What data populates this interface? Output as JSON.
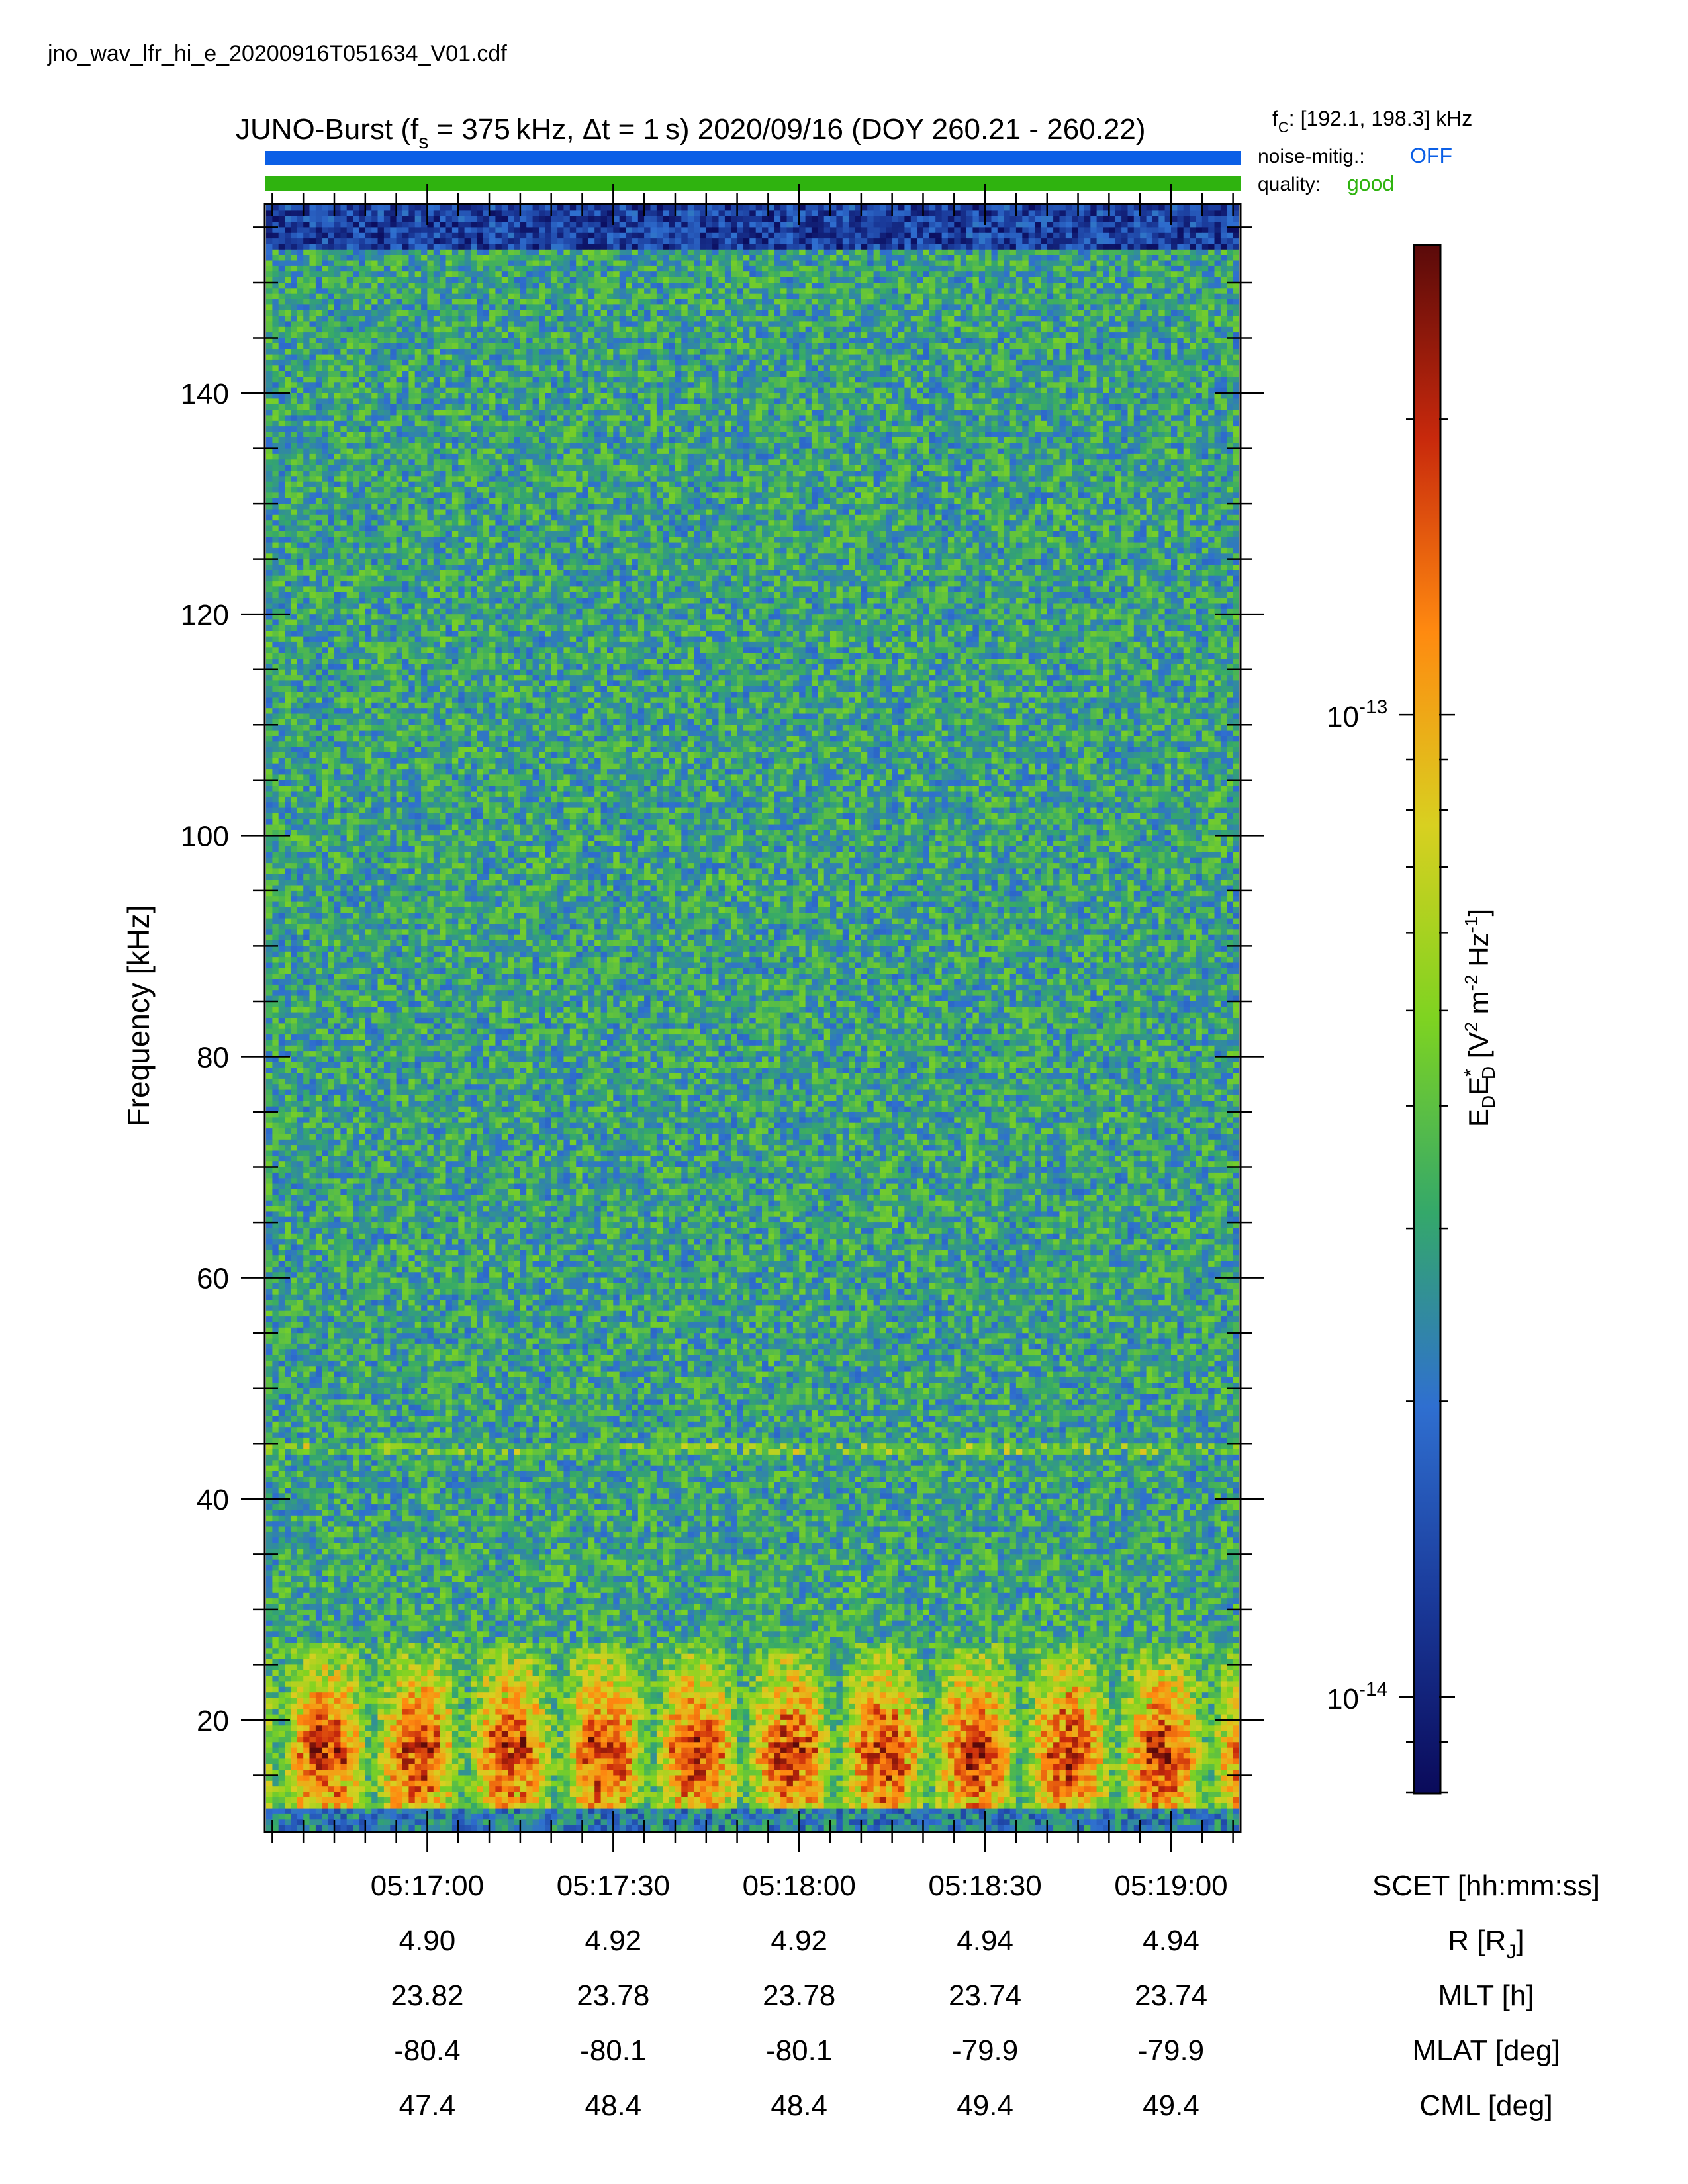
{
  "filename": "jno_wav_lfr_hi_e_20200916T051634_V01.cdf",
  "header": {
    "title_prefix": "JUNO-Burst (f",
    "title_sub": "s",
    "title_mid": " = 375 kHz, Δt = 1 s)  2020/09/16 (DOY 260.21 - 260.22)",
    "fc_label": "f",
    "fc_sub": "C",
    "fc_value": ": [192.1, 198.3] kHz"
  },
  "status": {
    "noise_label": "noise-mitig.:",
    "noise_value": "OFF",
    "noise_color": "#0b5fe6",
    "quality_label": "quality:",
    "quality_value": "good",
    "quality_color": "#2fb30f"
  },
  "chart_data": {
    "type": "heatmap",
    "ylabel": "Frequency [kHz]",
    "yticks": [
      "20",
      "40",
      "60",
      "80",
      "100",
      "120",
      "140"
    ],
    "ylim": [
      10,
      157
    ],
    "xlim_seconds_after_051634": [
      0,
      157
    ],
    "xticks": [
      "05:17:00",
      "05:17:30",
      "05:18:00",
      "05:18:30",
      "05:19:00"
    ],
    "x_axis_label": "SCET [hh:mm:ss]",
    "ephemeris": [
      {
        "label": "R [R",
        "sub": "J",
        "after": "]",
        "values": [
          "4.90",
          "4.92",
          "4.92",
          "4.94",
          "4.94"
        ]
      },
      {
        "label": "MLT [h]",
        "sub": "",
        "after": "",
        "values": [
          "23.82",
          "23.78",
          "23.78",
          "23.74",
          "23.74"
        ]
      },
      {
        "label": "MLAT [deg]",
        "sub": "",
        "after": "",
        "values": [
          "-80.4",
          "-80.1",
          "-80.1",
          "-79.9",
          "-79.9"
        ]
      },
      {
        "label": "CML [deg]",
        "sub": "",
        "after": "",
        "values": [
          "47.4",
          "48.4",
          "48.4",
          "49.4",
          "49.4"
        ]
      }
    ],
    "colorbar": {
      "scale": "log",
      "range": [
        8e-15,
        3e-13
      ],
      "ticks": [
        {
          "base": "10",
          "exp": "-13",
          "value": 1e-13
        },
        {
          "base": "10",
          "exp": "-14",
          "value": 1e-14
        }
      ],
      "colormap": [
        "#0a0a5a",
        "#1a3a9a",
        "#2f6fd0",
        "#34a86a",
        "#7ed321",
        "#d8d020",
        "#ff8a10",
        "#c8290c",
        "#5a0a0a"
      ],
      "label_parts": {
        "e1": "E",
        "s1": "D",
        "e2": "E",
        "sup2": "*",
        "s2": "D",
        "rest1": " [V",
        "p1": "2",
        "rest2": " m",
        "p2": "-2",
        "rest3": " Hz",
        "p3": "-1",
        "rest4": "]"
      }
    },
    "features": {
      "background_level": "blue/green noise",
      "narrowband_line_kHz": 44.5,
      "periodic_bursts": {
        "freq_range_kHz": [
          12,
          27
        ],
        "period_s": 15,
        "peak_color": "red"
      }
    }
  }
}
